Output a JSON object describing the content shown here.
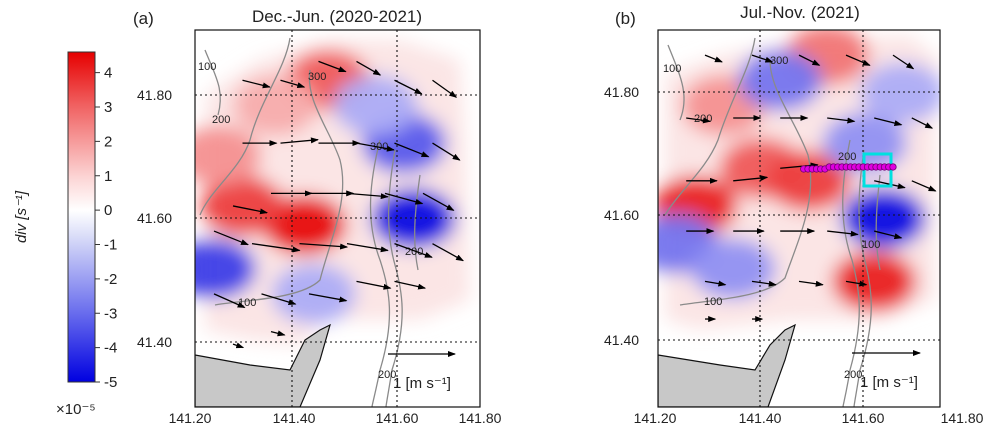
{
  "colorbar": {
    "label": "div [s⁻¹]",
    "exponent_label": "×10⁻⁵",
    "ticks": [
      "4",
      "3",
      "2",
      "1",
      "0",
      "-1",
      "-2",
      "-3",
      "-4",
      "-5"
    ],
    "range": [
      -5,
      4.6
    ],
    "colors": {
      "max": "#e60000",
      "mid": "#ffffff",
      "min": "#0000e0"
    }
  },
  "chart_data": [
    {
      "type": "heatmap",
      "panel_label": "(a)",
      "title": "Dec.-Jun. (2020-2021)",
      "xlim": [
        141.2,
        141.8
      ],
      "ylim": [
        41.3,
        41.9
      ],
      "xticks": [
        "141.20",
        "141.40",
        "141.60",
        "141.80"
      ],
      "yticks": [
        "41.40",
        "41.60",
        "41.80"
      ],
      "contour_labels": [
        "100",
        "200",
        "300",
        "300",
        "200",
        "100",
        "200"
      ],
      "scale_arrow_label": "1 [m s⁻¹]",
      "divergence_blobs": [
        {
          "lon": 141.43,
          "lat": 41.59,
          "div": 4.5
        },
        {
          "lon": 141.3,
          "lat": 41.62,
          "div": 3.5
        },
        {
          "lon": 141.48,
          "lat": 41.82,
          "div": 3.0
        },
        {
          "lon": 141.25,
          "lat": 41.7,
          "div": 2.0
        },
        {
          "lon": 141.37,
          "lat": 41.78,
          "div": 1.5
        },
        {
          "lon": 141.66,
          "lat": 41.6,
          "div": -4.5
        },
        {
          "lon": 141.64,
          "lat": 41.72,
          "div": -3.0
        },
        {
          "lon": 141.24,
          "lat": 41.52,
          "div": -3.5
        },
        {
          "lon": 141.45,
          "lat": 41.48,
          "div": -1.5
        },
        {
          "lon": 141.58,
          "lat": 41.78,
          "div": -1.5
        }
      ],
      "vectors": [
        {
          "lon": 141.3,
          "lat": 41.82,
          "u": 0.4,
          "v": -0.1
        },
        {
          "lon": 141.38,
          "lat": 41.82,
          "u": 0.35,
          "v": -0.1
        },
        {
          "lon": 141.46,
          "lat": 41.85,
          "u": 0.4,
          "v": -0.15
        },
        {
          "lon": 141.54,
          "lat": 41.85,
          "u": 0.35,
          "v": -0.2
        },
        {
          "lon": 141.62,
          "lat": 41.82,
          "u": 0.4,
          "v": -0.2
        },
        {
          "lon": 141.7,
          "lat": 41.82,
          "u": 0.35,
          "v": -0.25
        },
        {
          "lon": 141.3,
          "lat": 41.72,
          "u": 0.5,
          "v": 0.0
        },
        {
          "lon": 141.38,
          "lat": 41.72,
          "u": 0.55,
          "v": 0.05
        },
        {
          "lon": 141.46,
          "lat": 41.72,
          "u": 0.6,
          "v": 0.0
        },
        {
          "lon": 141.54,
          "lat": 41.72,
          "u": 0.55,
          "v": -0.1
        },
        {
          "lon": 141.62,
          "lat": 41.72,
          "u": 0.5,
          "v": -0.2
        },
        {
          "lon": 141.7,
          "lat": 41.72,
          "u": 0.4,
          "v": -0.25
        },
        {
          "lon": 141.28,
          "lat": 41.62,
          "u": 0.5,
          "v": -0.1
        },
        {
          "lon": 141.36,
          "lat": 41.64,
          "u": 0.6,
          "v": 0.0
        },
        {
          "lon": 141.44,
          "lat": 41.64,
          "u": 0.65,
          "v": 0.0
        },
        {
          "lon": 141.52,
          "lat": 41.64,
          "u": 0.6,
          "v": -0.05
        },
        {
          "lon": 141.6,
          "lat": 41.64,
          "u": 0.55,
          "v": -0.15
        },
        {
          "lon": 141.68,
          "lat": 41.64,
          "u": 0.45,
          "v": -0.25
        },
        {
          "lon": 141.24,
          "lat": 41.58,
          "u": 0.5,
          "v": -0.2
        },
        {
          "lon": 141.32,
          "lat": 41.56,
          "u": 0.7,
          "v": -0.1
        },
        {
          "lon": 141.42,
          "lat": 41.56,
          "u": 0.7,
          "v": -0.05
        },
        {
          "lon": 141.52,
          "lat": 41.56,
          "u": 0.6,
          "v": -0.1
        },
        {
          "lon": 141.62,
          "lat": 41.56,
          "u": 0.55,
          "v": -0.2
        },
        {
          "lon": 141.7,
          "lat": 41.56,
          "u": 0.45,
          "v": -0.25
        },
        {
          "lon": 141.24,
          "lat": 41.48,
          "u": 0.45,
          "v": -0.2
        },
        {
          "lon": 141.34,
          "lat": 41.48,
          "u": 0.5,
          "v": -0.15
        },
        {
          "lon": 141.44,
          "lat": 41.48,
          "u": 0.55,
          "v": -0.1
        },
        {
          "lon": 141.54,
          "lat": 41.5,
          "u": 0.5,
          "v": -0.1
        },
        {
          "lon": 141.62,
          "lat": 41.5,
          "u": 0.45,
          "v": -0.1
        },
        {
          "lon": 141.28,
          "lat": 41.4,
          "u": 0.15,
          "v": -0.05
        },
        {
          "lon": 141.36,
          "lat": 41.42,
          "u": 0.2,
          "v": -0.05
        }
      ]
    },
    {
      "type": "heatmap",
      "panel_label": "(b)",
      "title": "Jul.-Nov. (2021)",
      "xlim": [
        141.2,
        141.8
      ],
      "ylim": [
        41.3,
        41.9
      ],
      "xticks": [
        "141.20",
        "141.40",
        "141.60",
        "141.80"
      ],
      "yticks": [
        "41.40",
        "41.60",
        "41.80"
      ],
      "contour_labels": [
        "100",
        "200",
        "300",
        "100",
        "200",
        "100",
        "200"
      ],
      "scale_arrow_label": "1 [m s⁻¹]",
      "divergence_blobs": [
        {
          "lon": 141.28,
          "lat": 41.62,
          "div": 4.0
        },
        {
          "lon": 141.42,
          "lat": 41.68,
          "div": 3.0
        },
        {
          "lon": 141.52,
          "lat": 41.66,
          "div": 3.5
        },
        {
          "lon": 141.34,
          "lat": 41.78,
          "div": 2.0
        },
        {
          "lon": 141.56,
          "lat": 41.86,
          "div": 2.5
        },
        {
          "lon": 141.66,
          "lat": 41.5,
          "div": 4.0
        },
        {
          "lon": 141.24,
          "lat": 41.56,
          "div": -2.5
        },
        {
          "lon": 141.36,
          "lat": 41.52,
          "div": -2.0
        },
        {
          "lon": 141.46,
          "lat": 41.82,
          "div": -2.5
        },
        {
          "lon": 141.68,
          "lat": 41.6,
          "div": -4.5
        },
        {
          "lon": 141.64,
          "lat": 41.72,
          "div": -2.0
        },
        {
          "lon": 141.72,
          "lat": 41.8,
          "div": -1.5
        }
      ],
      "vectors": [
        {
          "lon": 141.3,
          "lat": 41.86,
          "u": 0.25,
          "v": -0.1
        },
        {
          "lon": 141.4,
          "lat": 41.86,
          "u": 0.3,
          "v": -0.1
        },
        {
          "lon": 141.5,
          "lat": 41.86,
          "u": 0.3,
          "v": -0.15
        },
        {
          "lon": 141.6,
          "lat": 41.86,
          "u": 0.35,
          "v": -0.15
        },
        {
          "lon": 141.7,
          "lat": 41.86,
          "u": 0.3,
          "v": -0.2
        },
        {
          "lon": 141.26,
          "lat": 41.76,
          "u": 0.35,
          "v": -0.05
        },
        {
          "lon": 141.36,
          "lat": 41.76,
          "u": 0.4,
          "v": 0.0
        },
        {
          "lon": 141.46,
          "lat": 41.76,
          "u": 0.4,
          "v": 0.0
        },
        {
          "lon": 141.56,
          "lat": 41.76,
          "u": 0.4,
          "v": -0.05
        },
        {
          "lon": 141.66,
          "lat": 41.76,
          "u": 0.4,
          "v": -0.1
        },
        {
          "lon": 141.74,
          "lat": 41.76,
          "u": 0.3,
          "v": -0.15
        },
        {
          "lon": 141.26,
          "lat": 41.66,
          "u": 0.45,
          "v": 0.0
        },
        {
          "lon": 141.36,
          "lat": 41.66,
          "u": 0.5,
          "v": 0.05
        },
        {
          "lon": 141.46,
          "lat": 41.68,
          "u": 0.55,
          "v": 0.05
        },
        {
          "lon": 141.56,
          "lat": 41.68,
          "u": 0.5,
          "v": 0.0
        },
        {
          "lon": 141.66,
          "lat": 41.66,
          "u": 0.45,
          "v": -0.1
        },
        {
          "lon": 141.74,
          "lat": 41.66,
          "u": 0.35,
          "v": -0.15
        },
        {
          "lon": 141.26,
          "lat": 41.58,
          "u": 0.4,
          "v": 0.0
        },
        {
          "lon": 141.36,
          "lat": 41.58,
          "u": 0.45,
          "v": 0.0
        },
        {
          "lon": 141.46,
          "lat": 41.58,
          "u": 0.5,
          "v": 0.0
        },
        {
          "lon": 141.56,
          "lat": 41.58,
          "u": 0.45,
          "v": -0.05
        },
        {
          "lon": 141.66,
          "lat": 41.58,
          "u": 0.4,
          "v": -0.1
        },
        {
          "lon": 141.3,
          "lat": 41.5,
          "u": 0.3,
          "v": -0.05
        },
        {
          "lon": 141.4,
          "lat": 41.5,
          "u": 0.35,
          "v": -0.05
        },
        {
          "lon": 141.5,
          "lat": 41.5,
          "u": 0.35,
          "v": -0.05
        },
        {
          "lon": 141.6,
          "lat": 41.5,
          "u": 0.3,
          "v": -0.05
        },
        {
          "lon": 141.3,
          "lat": 41.44,
          "u": 0.15,
          "v": 0.0
        },
        {
          "lon": 141.4,
          "lat": 41.44,
          "u": 0.15,
          "v": 0.0
        }
      ],
      "transect_lon_range": [
        141.51,
        141.7
      ],
      "transect_lat": 41.682,
      "box": {
        "lon": [
          141.61,
          141.68
        ],
        "lat": [
          41.64,
          41.69
        ]
      }
    }
  ]
}
